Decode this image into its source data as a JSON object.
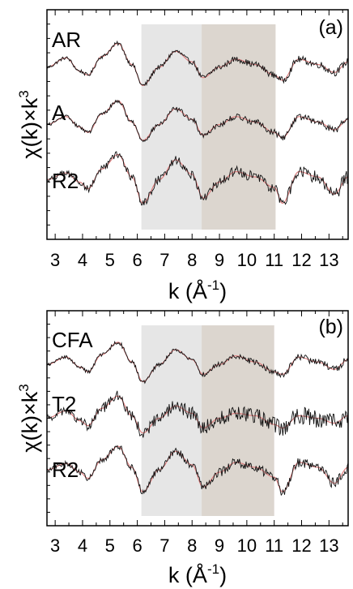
{
  "chart_data": [
    {
      "type": "line",
      "panel_label": "(a)",
      "xlabel": "k (Å",
      "xlabel_sup": "-1",
      "xlabel_tail": ")",
      "ylabel": "χ(k)×k",
      "ylabel_sup": "3",
      "xlim": [
        2.7,
        13.7
      ],
      "xticks": [
        3,
        4,
        5,
        6,
        7,
        8,
        9,
        10,
        11,
        12,
        13
      ],
      "xtick_labels": [
        "3",
        "4",
        "5",
        "6",
        "7",
        "8",
        "9",
        "10",
        "11",
        "12",
        "13"
      ],
      "shaded_regions": [
        {
          "from": 6.15,
          "to": 8.35,
          "color": "#e6e6e6"
        },
        {
          "from": 8.35,
          "to": 11.05,
          "color": "#dcd6cf"
        }
      ],
      "line_colors": {
        "experiment": "#111111",
        "fit": "#e08080"
      },
      "series": [
        {
          "name": "AR",
          "offset": 2.0,
          "scale": 0.55,
          "noise": 0.05,
          "x": [
            2.7,
            3.4,
            3.9,
            4.2,
            4.7,
            5.3,
            5.8,
            6.2,
            6.8,
            7.4,
            8.0,
            8.4,
            9.0,
            9.6,
            10.3,
            11.0,
            11.3,
            11.9,
            12.6,
            13.2,
            13.7
          ],
          "y": [
            0.0,
            0.35,
            -0.15,
            -0.3,
            0.4,
            0.9,
            0.1,
            -0.7,
            0.0,
            0.6,
            0.2,
            -0.4,
            0.0,
            0.3,
            0.1,
            -0.3,
            -0.5,
            0.3,
            0.1,
            -0.2,
            0.2
          ]
        },
        {
          "name": "A",
          "offset": 0.8,
          "scale": 0.55,
          "noise": 0.05,
          "x": [
            2.7,
            3.4,
            3.9,
            4.2,
            4.7,
            5.3,
            5.8,
            6.2,
            6.8,
            7.4,
            8.0,
            8.4,
            9.0,
            9.6,
            10.3,
            11.0,
            11.3,
            11.9,
            12.6,
            13.2,
            13.7
          ],
          "y": [
            0.0,
            0.3,
            -0.1,
            -0.3,
            0.4,
            0.9,
            0.1,
            -0.6,
            0.0,
            0.6,
            0.2,
            -0.4,
            0.0,
            0.3,
            0.1,
            -0.3,
            -0.5,
            0.3,
            0.1,
            -0.2,
            0.2
          ]
        },
        {
          "name": "R2",
          "offset": -0.35,
          "scale": 0.55,
          "noise": 0.09,
          "x": [
            2.7,
            3.4,
            3.9,
            4.2,
            4.7,
            5.3,
            5.8,
            6.2,
            6.8,
            7.4,
            8.0,
            8.4,
            9.0,
            9.6,
            10.3,
            11.0,
            11.3,
            11.9,
            12.6,
            13.2,
            13.7
          ],
          "y": [
            0.0,
            0.25,
            -0.1,
            -0.35,
            0.4,
            0.95,
            0.1,
            -0.9,
            0.0,
            0.75,
            0.2,
            -0.7,
            -0.1,
            0.3,
            0.1,
            -0.3,
            -0.9,
            0.3,
            0.1,
            -0.55,
            0.1
          ]
        }
      ],
      "ylim": [
        -1.6,
        3.2
      ]
    },
    {
      "type": "line",
      "panel_label": "(b)",
      "xlabel": "k (Å",
      "xlabel_sup": "-1",
      "xlabel_tail": ")",
      "ylabel": "χ(k)×k",
      "ylabel_sup": "3",
      "xlim": [
        2.7,
        13.7
      ],
      "xticks": [
        3,
        4,
        5,
        6,
        7,
        8,
        9,
        10,
        11,
        12,
        13
      ],
      "xtick_labels": [
        "3",
        "4",
        "5",
        "6",
        "7",
        "8",
        "9",
        "10",
        "11",
        "12",
        "13"
      ],
      "shaded_regions": [
        {
          "from": 6.15,
          "to": 8.35,
          "color": "#e6e6e6"
        },
        {
          "from": 8.35,
          "to": 11.0,
          "color": "#dcd6cf"
        }
      ],
      "line_colors": {
        "experiment": "#111111",
        "fit": "#e08080"
      },
      "series": [
        {
          "name": "CFA",
          "offset": 2.0,
          "scale": 0.55,
          "noise": 0.05,
          "x": [
            2.7,
            3.4,
            3.9,
            4.2,
            4.7,
            5.3,
            5.8,
            6.2,
            6.8,
            7.4,
            8.0,
            8.4,
            9.0,
            9.6,
            10.3,
            11.0,
            11.3,
            11.9,
            12.6,
            13.2,
            13.7
          ],
          "y": [
            0.0,
            0.3,
            -0.1,
            -0.3,
            0.4,
            0.9,
            0.1,
            -0.7,
            0.0,
            0.6,
            0.2,
            -0.4,
            0.0,
            0.35,
            0.1,
            -0.3,
            -0.4,
            0.3,
            0.1,
            -0.2,
            0.2
          ]
        },
        {
          "name": "T2",
          "offset": 0.8,
          "scale": 0.55,
          "noise": 0.14,
          "x": [
            2.7,
            3.4,
            3.9,
            4.2,
            4.7,
            5.3,
            5.8,
            6.2,
            6.8,
            7.4,
            8.0,
            8.4,
            9.0,
            9.6,
            10.3,
            11.0,
            11.3,
            11.9,
            12.6,
            13.2,
            13.7
          ],
          "y": [
            0.0,
            0.3,
            -0.1,
            -0.3,
            0.4,
            0.9,
            0.1,
            -0.6,
            0.0,
            0.5,
            0.2,
            -0.4,
            0.0,
            0.2,
            0.1,
            -0.25,
            -0.4,
            0.1,
            0.0,
            -0.2,
            0.1
          ]
        },
        {
          "name": "R2",
          "offset": -0.35,
          "scale": 0.55,
          "noise": 0.08,
          "x": [
            2.7,
            3.4,
            3.9,
            4.2,
            4.7,
            5.3,
            5.8,
            6.2,
            6.8,
            7.4,
            8.0,
            8.4,
            9.0,
            9.6,
            10.3,
            11.0,
            11.3,
            11.9,
            12.6,
            13.2,
            13.7
          ],
          "y": [
            0.0,
            0.25,
            -0.1,
            -0.35,
            0.4,
            0.95,
            0.1,
            -0.9,
            0.0,
            0.75,
            0.2,
            -0.7,
            -0.1,
            0.3,
            0.1,
            -0.3,
            -0.9,
            0.3,
            0.1,
            -0.55,
            0.1
          ]
        }
      ],
      "ylim": [
        -1.6,
        3.2
      ]
    }
  ]
}
